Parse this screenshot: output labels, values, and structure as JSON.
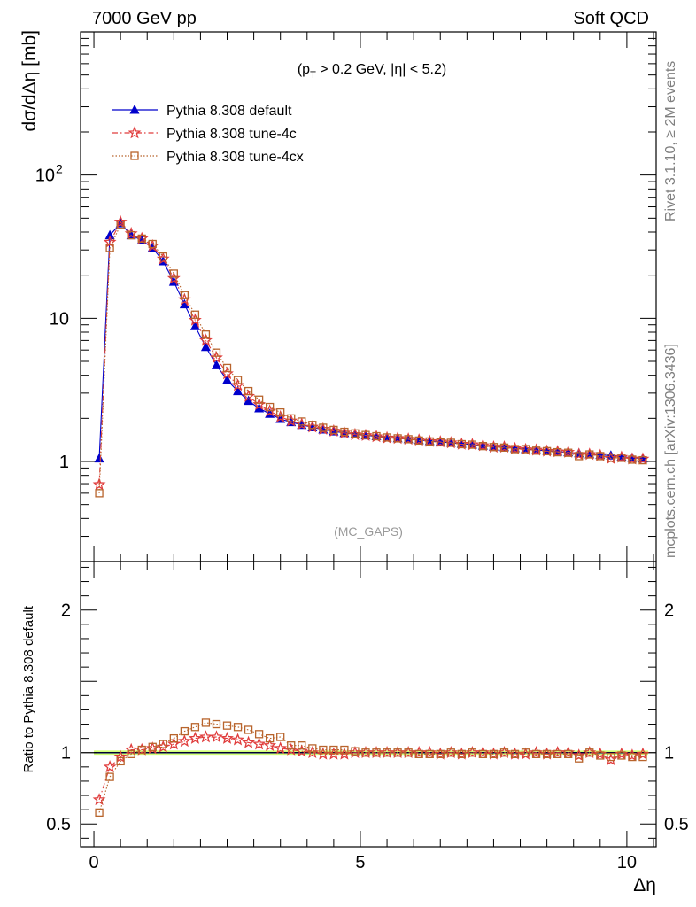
{
  "header": {
    "left": "7000 GeV pp",
    "right": "Soft QCD"
  },
  "side_text": {
    "rivet": "Rivet 3.1.10, ≥ 2M events",
    "mcplots": "mcplots.cern.ch [arXiv:1306.3436]"
  },
  "watermark": "(MC_GAPS)",
  "cut_label": "(p_T > 0.2 GeV, |η| < 5.2)",
  "colors": {
    "default": "#0000cc",
    "tune4c": "#e03c3c",
    "tune4cx": "#b8642c",
    "band": "#ccff66"
  },
  "chart_data": [
    {
      "type": "line",
      "panel": "main",
      "ylabel": "dσ/dΔη [mb]",
      "yscale": "log",
      "xlim": [
        -0.25,
        10.55
      ],
      "ylim": [
        0.2,
        1000
      ],
      "yticks": [
        {
          "value": 1,
          "label": "1"
        },
        {
          "value": 10,
          "label": "10"
        },
        {
          "value": 100,
          "label": "10",
          "sup": "2"
        }
      ],
      "legend_position": "top-left",
      "x": [
        0.1,
        0.3,
        0.5,
        0.7,
        0.9,
        1.1,
        1.3,
        1.5,
        1.7,
        1.9,
        2.1,
        2.3,
        2.5,
        2.7,
        2.9,
        3.1,
        3.3,
        3.5,
        3.7,
        3.9,
        4.1,
        4.3,
        4.5,
        4.7,
        4.9,
        5.1,
        5.3,
        5.5,
        5.7,
        5.9,
        6.1,
        6.3,
        6.5,
        6.7,
        6.9,
        7.1,
        7.3,
        7.5,
        7.7,
        7.9,
        8.1,
        8.3,
        8.5,
        8.7,
        8.9,
        9.1,
        9.3,
        9.5,
        9.7,
        9.9,
        10.1,
        10.3
      ],
      "series": [
        {
          "name": "Pythia 8.308 default",
          "key": "default",
          "marker": "triangle",
          "values": [
            1.05,
            38,
            46,
            38,
            35,
            31,
            25,
            18,
            12.5,
            8.8,
            6.3,
            4.7,
            3.7,
            3.1,
            2.65,
            2.35,
            2.15,
            1.98,
            1.88,
            1.8,
            1.73,
            1.67,
            1.62,
            1.58,
            1.55,
            1.52,
            1.5,
            1.47,
            1.45,
            1.43,
            1.41,
            1.39,
            1.37,
            1.35,
            1.33,
            1.31,
            1.29,
            1.27,
            1.26,
            1.24,
            1.22,
            1.2,
            1.19,
            1.17,
            1.16,
            1.14,
            1.12,
            1.11,
            1.1,
            1.08,
            1.06,
            1.05
          ]
        },
        {
          "name": "Pythia 8.308 tune-4c",
          "key": "tune4c",
          "marker": "star",
          "values": [
            0.69,
            34,
            47,
            39,
            36,
            32,
            26,
            19,
            13.5,
            9.7,
            7.0,
            5.3,
            4.1,
            3.4,
            2.85,
            2.5,
            2.25,
            2.05,
            1.92,
            1.82,
            1.74,
            1.68,
            1.63,
            1.58,
            1.54,
            1.52,
            1.49,
            1.46,
            1.45,
            1.43,
            1.41,
            1.38,
            1.37,
            1.35,
            1.32,
            1.31,
            1.29,
            1.26,
            1.26,
            1.23,
            1.21,
            1.2,
            1.18,
            1.17,
            1.16,
            1.12,
            1.12,
            1.1,
            1.05,
            1.07,
            1.04,
            1.04
          ]
        },
        {
          "name": "Pythia 8.308 tune-4cx",
          "key": "tune4cx",
          "marker": "square",
          "values": [
            0.6,
            31,
            45,
            38,
            36,
            33,
            27,
            20.5,
            14.5,
            10.6,
            7.7,
            5.75,
            4.5,
            3.7,
            3.1,
            2.7,
            2.4,
            2.2,
            2.0,
            1.9,
            1.8,
            1.72,
            1.66,
            1.61,
            1.57,
            1.53,
            1.5,
            1.47,
            1.45,
            1.43,
            1.4,
            1.38,
            1.36,
            1.35,
            1.32,
            1.31,
            1.28,
            1.26,
            1.25,
            1.22,
            1.22,
            1.19,
            1.18,
            1.16,
            1.15,
            1.09,
            1.12,
            1.09,
            1.06,
            1.06,
            1.03,
            1.02
          ]
        }
      ]
    },
    {
      "type": "line",
      "panel": "ratio",
      "ylabel": "Ratio to Pythia 8.308 default",
      "xlabel": "Δη",
      "xlim": [
        -0.25,
        10.55
      ],
      "ylim": [
        0.34,
        2.34
      ],
      "xticks": [
        {
          "value": 0,
          "label": "0"
        },
        {
          "value": 5,
          "label": "5"
        },
        {
          "value": 10,
          "label": "10"
        }
      ],
      "yticks": [
        {
          "value": 0.5,
          "label": "0.5"
        },
        {
          "value": 1,
          "label": "1"
        },
        {
          "value": 2,
          "label": "2"
        }
      ],
      "x": [
        0.1,
        0.3,
        0.5,
        0.7,
        0.9,
        1.1,
        1.3,
        1.5,
        1.7,
        1.9,
        2.1,
        2.3,
        2.5,
        2.7,
        2.9,
        3.1,
        3.3,
        3.5,
        3.7,
        3.9,
        4.1,
        4.3,
        4.5,
        4.7,
        4.9,
        5.1,
        5.3,
        5.5,
        5.7,
        5.9,
        6.1,
        6.3,
        6.5,
        6.7,
        6.9,
        7.1,
        7.3,
        7.5,
        7.7,
        7.9,
        8.1,
        8.3,
        8.5,
        8.7,
        8.9,
        9.1,
        9.3,
        9.5,
        9.7,
        9.9,
        10.1,
        10.3
      ],
      "series": [
        {
          "name": "Pythia 8.308 tune-4c",
          "key": "tune4c",
          "marker": "star",
          "values": [
            0.67,
            0.9,
            0.97,
            1.02,
            1.02,
            1.03,
            1.04,
            1.06,
            1.08,
            1.1,
            1.11,
            1.11,
            1.1,
            1.09,
            1.07,
            1.06,
            1.05,
            1.03,
            1.02,
            1.01,
            1.0,
            0.99,
            0.99,
            0.99,
            1.0,
            1.0,
            1.0,
            1.0,
            1.0,
            1.0,
            1.0,
            1.0,
            0.99,
            1.0,
            0.99,
            1.0,
            1.0,
            0.99,
            1.0,
            0.99,
            0.99,
            1.0,
            0.99,
            1.0,
            1.0,
            0.98,
            1.0,
            0.99,
            0.95,
            0.99,
            0.98,
            0.99
          ]
        },
        {
          "name": "Pythia 8.308 tune-4cx",
          "key": "tune4cx",
          "marker": "square",
          "values": [
            0.58,
            0.83,
            0.94,
            0.99,
            1.02,
            1.04,
            1.06,
            1.1,
            1.15,
            1.18,
            1.21,
            1.2,
            1.19,
            1.18,
            1.16,
            1.13,
            1.1,
            1.11,
            1.05,
            1.05,
            1.03,
            1.02,
            1.02,
            1.02,
            1.01,
            1.0,
            1.0,
            1.0,
            1.0,
            1.0,
            0.99,
            0.99,
            0.99,
            1.0,
            0.99,
            1.0,
            0.99,
            0.99,
            1.0,
            0.99,
            1.0,
            0.99,
            0.99,
            0.99,
            0.99,
            0.96,
            1.0,
            0.98,
            0.97,
            0.98,
            0.97,
            0.97
          ]
        }
      ]
    }
  ]
}
